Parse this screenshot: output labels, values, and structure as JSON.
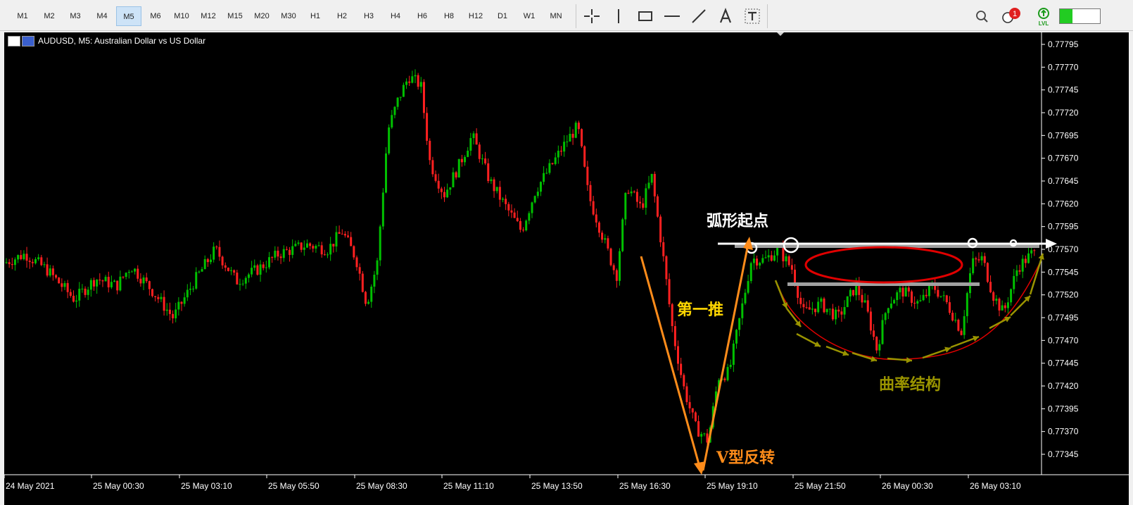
{
  "toolbar": {
    "timeframes": [
      "M1",
      "M2",
      "M3",
      "M4",
      "M5",
      "M6",
      "M10",
      "M12",
      "M15",
      "M20",
      "M30",
      "H1",
      "H2",
      "H3",
      "H4",
      "H6",
      "H8",
      "H12",
      "D1",
      "W1",
      "MN"
    ],
    "active_timeframe": "M5",
    "notification_count": "1",
    "lvl_label": "LVL",
    "drawing_tool_icons": [
      "crosshair-icon",
      "vertical-line-icon",
      "rectangle-icon",
      "horizontal-line-icon",
      "trendline-icon",
      "text-icon",
      "text-label-icon"
    ]
  },
  "chart": {
    "symbol_title": "AUDUSD, M5:  Australian Dollar vs US Dollar",
    "bull_color": "#00c000",
    "bear_color": "#ff2020",
    "price_labels": [
      "0.77795",
      "0.77770",
      "0.77745",
      "0.77720",
      "0.77695",
      "0.77670",
      "0.77645",
      "0.77620",
      "0.77595",
      "0.77570",
      "0.77545",
      "0.77520",
      "0.77495",
      "0.77470",
      "0.77445",
      "0.77420",
      "0.77395",
      "0.77370",
      "0.77345"
    ],
    "time_labels": [
      "24 May 2021",
      "25 May 00:30",
      "25 May 03:10",
      "25 May 05:50",
      "25 May 08:30",
      "25 May 11:10",
      "25 May 13:50",
      "25 May 16:30",
      "25 May 19:10",
      "25 May 21:50",
      "26 May 00:30",
      "26 May 03:10"
    ]
  },
  "annotations": {
    "arc_start": "弧形起点",
    "first_push": "第一推",
    "v_reversal": "V型反转",
    "curvature": "曲率结构",
    "colors": {
      "white": "#ffffff",
      "orange": "#ff8c1a",
      "yellow": "#ffd700",
      "olive": "#9a9400",
      "red": "#e00000",
      "gray": "#a0a0a0"
    }
  }
}
